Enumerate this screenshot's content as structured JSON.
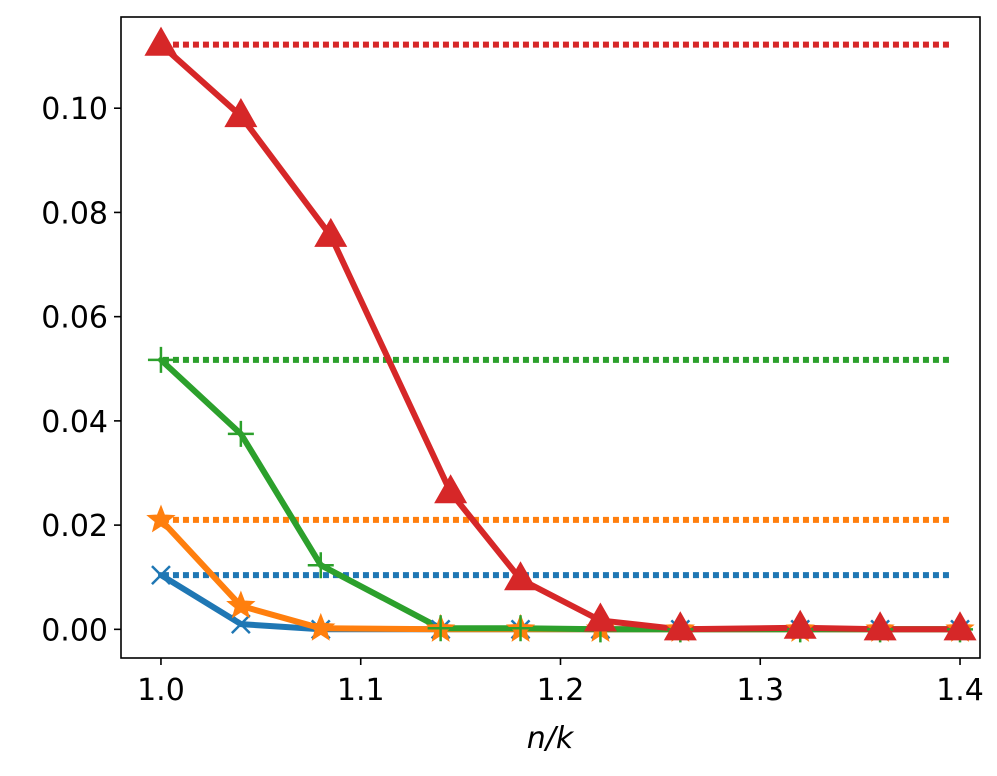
{
  "chart_data": {
    "type": "line",
    "title": "",
    "xlabel": "n/k",
    "ylabel": "",
    "xlim": [
      0.98,
      1.41
    ],
    "ylim": [
      -0.0055,
      0.1175
    ],
    "grid": false,
    "legend": "none",
    "x_ticks": [
      1.0,
      1.1,
      1.2,
      1.3,
      1.4
    ],
    "x_tick_labels": [
      "1.0",
      "1.1",
      "1.2",
      "1.3",
      "1.4"
    ],
    "y_ticks": [
      0.0,
      0.02,
      0.04,
      0.06,
      0.08,
      0.1
    ],
    "y_tick_labels": [
      "0.00",
      "0.02",
      "0.04",
      "0.06",
      "0.08",
      "0.10"
    ],
    "series": [
      {
        "color": "#1f77b4",
        "marker": "x",
        "x": [
          1.0,
          1.04,
          1.08,
          1.14,
          1.18,
          1.22,
          1.26,
          1.32,
          1.36,
          1.4
        ],
        "values": [
          0.0104,
          0.001,
          0.0,
          0.0,
          0.0,
          0.0,
          0.0,
          0.0,
          0.0,
          0.0
        ],
        "baseline": 0.0104
      },
      {
        "color": "#ff7f0e",
        "marker": "star",
        "x": [
          1.0,
          1.04,
          1.08,
          1.14,
          1.18,
          1.22,
          1.26,
          1.32,
          1.36,
          1.4
        ],
        "values": [
          0.021,
          0.0045,
          0.0002,
          0.0,
          0.0,
          0.0,
          0.0,
          0.0,
          0.0,
          0.0
        ],
        "baseline": 0.021
      },
      {
        "color": "#2ca02c",
        "marker": "plus",
        "x": [
          1.0,
          1.04,
          1.08,
          1.14,
          1.18,
          1.22,
          1.26,
          1.32,
          1.36,
          1.4
        ],
        "values": [
          0.0517,
          0.0375,
          0.0123,
          0.0002,
          0.0002,
          0.0,
          0.0,
          0.0,
          0.0,
          0.0
        ],
        "baseline": 0.0517
      },
      {
        "color": "#d62728",
        "marker": "triangle",
        "x": [
          1.0,
          1.04,
          1.085,
          1.145,
          1.18,
          1.22,
          1.26,
          1.32,
          1.36,
          1.4
        ],
        "values": [
          0.1122,
          0.0985,
          0.0755,
          0.0263,
          0.0096,
          0.0017,
          0.0,
          0.0003,
          0.0,
          0.0
        ],
        "baseline": 0.1122
      }
    ]
  }
}
